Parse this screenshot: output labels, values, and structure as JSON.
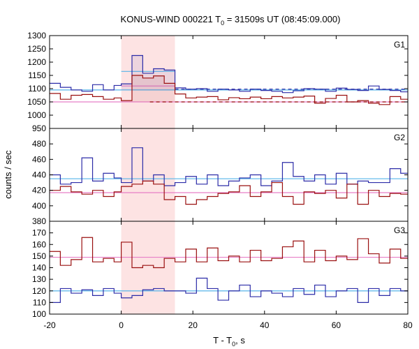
{
  "chart_data": {
    "type": "line",
    "title_main": "KONUS-WIND 000221 T",
    "title_sub": "0",
    "title_rest": " = 31509s UT (08:45:09.000)",
    "xlabel_main": "T - T",
    "xlabel_sub": "0",
    "xlabel_rest": ", s",
    "ylabel": "counts / sec",
    "xlim": [
      -20,
      80
    ],
    "x_ticks": [
      -20,
      0,
      20,
      40,
      60,
      80
    ],
    "x_tick_labels": [
      "-20",
      "0",
      "20",
      "40",
      "60",
      "80"
    ],
    "highlight_interval": [
      0,
      15
    ],
    "colors": {
      "blue": "#2c2ca8",
      "red": "#9a1010",
      "cyan": "#56b4e9",
      "pink": "#e77fc6",
      "highlight": "#fde3e3"
    },
    "panels": [
      {
        "label": "G1",
        "ylim": [
          950,
          1300
        ],
        "y_ticks": [
          950,
          1000,
          1050,
          1100,
          1150,
          1200,
          1250,
          1300
        ],
        "bin_edges": [
          -20,
          -17,
          -14,
          -11,
          -8,
          -5,
          -2,
          0,
          3,
          6,
          9,
          12,
          15,
          18,
          21,
          24,
          27,
          30,
          33,
          36,
          39,
          42,
          45,
          48,
          51,
          54,
          57,
          60,
          63,
          66,
          69,
          72,
          75,
          78,
          80
        ],
        "series": [
          {
            "color": "blue",
            "values": [
              1120,
              1105,
              1095,
              1090,
              1115,
              1095,
              1112,
              1118,
              1225,
              1158,
              1175,
              1170,
              1103,
              1098,
              1100,
              1090,
              1098,
              1095,
              1090,
              1098,
              1093,
              1090,
              1085,
              1092,
              1100,
              1098,
              1090,
              1102,
              1097,
              1093,
              1110,
              1097,
              1093,
              1088
            ],
            "fill_intervals": [
              [
                0,
                15
              ]
            ]
          },
          {
            "color": "red",
            "values": [
              1082,
              1060,
              1075,
              1078,
              1070,
              1060,
              1065,
              1055,
              1150,
              1140,
              1148,
              1120,
              1080,
              1065,
              1068,
              1070,
              1058,
              1066,
              1062,
              1068,
              1062,
              1070,
              1065,
              1068,
              1072,
              1045,
              1063,
              1075,
              1050,
              1055,
              1045,
              1040,
              1070,
              1060
            ],
            "fill_intervals": [
              [
                0,
                15
              ]
            ]
          }
        ],
        "levels": [
          {
            "color": "cyan",
            "value": 1095,
            "x_range": [
              -20,
              80
            ],
            "dashed": false
          },
          {
            "color": "cyan",
            "value": 1165,
            "x_range": [
              0,
              15
            ],
            "dashed": false
          },
          {
            "color": "pink",
            "value": 1050,
            "x_range": [
              -20,
              80
            ],
            "dashed": false
          },
          {
            "color": "pink",
            "value": 1110,
            "x_range": [
              0,
              15
            ],
            "dashed": false
          },
          {
            "color": "blue",
            "value": 1098,
            "x_range": [
              15,
              80
            ],
            "dashed": true
          },
          {
            "color": "red",
            "value": 1050,
            "x_range": [
              8,
              80
            ],
            "dashed": true
          }
        ]
      },
      {
        "label": "G2",
        "ylim": [
          380,
          500
        ],
        "y_ticks": [
          380,
          400,
          420,
          440,
          460,
          480
        ],
        "bin_edges": [
          -20,
          -17,
          -14,
          -11,
          -8,
          -5,
          -2,
          0,
          3,
          6,
          9,
          12,
          15,
          18,
          21,
          24,
          27,
          30,
          33,
          36,
          39,
          42,
          45,
          48,
          51,
          54,
          57,
          60,
          63,
          66,
          69,
          72,
          75,
          78,
          80
        ],
        "series": [
          {
            "color": "blue",
            "values": [
              440,
              428,
              430,
              462,
              432,
              442,
              436,
              430,
              475,
              432,
              440,
              426,
              430,
              438,
              428,
              440,
              426,
              432,
              436,
              440,
              426,
              432,
              456,
              438,
              432,
              440,
              428,
              442,
              428,
              432,
              430,
              430,
              448,
              442
            ],
            "fill_intervals": []
          },
          {
            "color": "red",
            "values": [
              420,
              425,
              418,
              415,
              420,
              412,
              418,
              425,
              428,
              432,
              428,
              408,
              412,
              402,
              408,
              412,
              416,
              418,
              426,
              412,
              418,
              430,
              412,
              402,
              418,
              416,
              420,
              410,
              428,
              402,
              420,
              412,
              416,
              415
            ],
            "fill_intervals": []
          }
        ],
        "levels": [
          {
            "color": "cyan",
            "value": 435,
            "x_range": [
              -20,
              80
            ],
            "dashed": false
          },
          {
            "color": "pink",
            "value": 417,
            "x_range": [
              -20,
              80
            ],
            "dashed": false
          }
        ]
      },
      {
        "label": "G3",
        "ylim": [
          100,
          180
        ],
        "y_ticks": [
          100,
          110,
          120,
          130,
          140,
          150,
          160,
          170
        ],
        "bin_edges": [
          -20,
          -17,
          -14,
          -11,
          -8,
          -5,
          -2,
          0,
          3,
          6,
          9,
          12,
          15,
          18,
          21,
          24,
          27,
          30,
          33,
          36,
          39,
          42,
          45,
          48,
          51,
          54,
          57,
          60,
          63,
          66,
          69,
          72,
          75,
          78,
          80
        ],
        "series": [
          {
            "color": "red",
            "values": [
              154,
              142,
              147,
              166,
              145,
              148,
              145,
              162,
              140,
              142,
              140,
              148,
              145,
              156,
              145,
              157,
              146,
              150,
              145,
              155,
              146,
              148,
              158,
              163,
              145,
              155,
              146,
              150,
              147,
              165,
              152,
              144,
              156,
              148
            ],
            "fill_intervals": []
          },
          {
            "color": "blue",
            "values": [
              110,
              122,
              118,
              121,
              116,
              122,
              118,
              114,
              116,
              121,
              122,
              120,
              120,
              118,
              131,
              122,
              112,
              120,
              125,
              115,
              120,
              118,
              115,
              122,
              117,
              125,
              115,
              120,
              122,
              110,
              122,
              116,
              122,
              120
            ],
            "fill_intervals": []
          }
        ],
        "levels": [
          {
            "color": "pink",
            "value": 149,
            "x_range": [
              -20,
              80
            ],
            "dashed": false
          },
          {
            "color": "cyan",
            "value": 120,
            "x_range": [
              -20,
              80
            ],
            "dashed": false
          }
        ]
      }
    ]
  }
}
